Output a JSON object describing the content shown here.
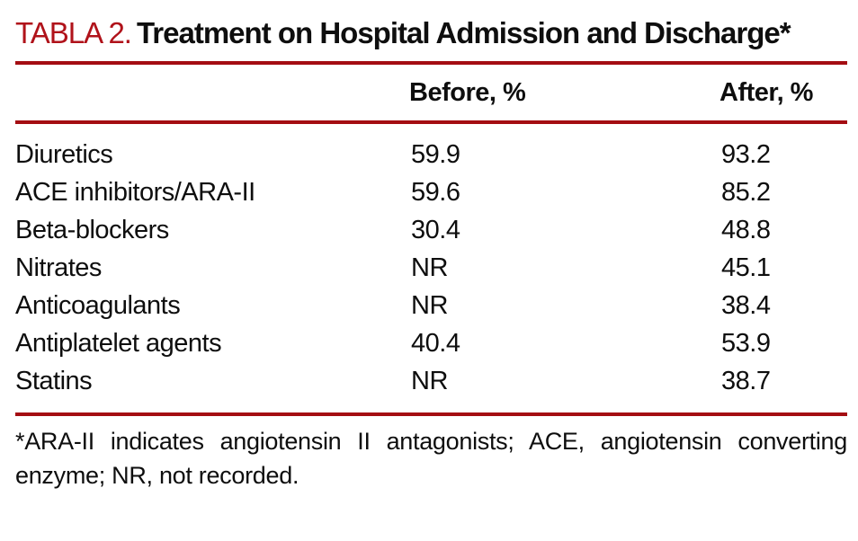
{
  "accent": {
    "title_label_color": "#b0121a",
    "rule_color": "#a40d12",
    "text_color": "#0e0e0e"
  },
  "title": {
    "label": "TABLA 2.",
    "text": "Treatment on Hospital Admission and Discharge*"
  },
  "table": {
    "columns": [
      "",
      "Before, %",
      "After, %"
    ],
    "rows": [
      {
        "treatment": "Diuretics",
        "before": "59.9",
        "after": "93.2"
      },
      {
        "treatment": "ACE inhibitors/ARA-II",
        "before": "59.6",
        "after": "85.2"
      },
      {
        "treatment": "Beta-blockers",
        "before": "30.4",
        "after": "48.8"
      },
      {
        "treatment": "Nitrates",
        "before": "NR",
        "after": "45.1"
      },
      {
        "treatment": "Anticoagulants",
        "before": "NR",
        "after": "38.4"
      },
      {
        "treatment": "Antiplatelet agents",
        "before": "40.4",
        "after": "53.9"
      },
      {
        "treatment": "Statins",
        "before": "NR",
        "after": "38.7"
      }
    ]
  },
  "footnote": {
    "text": "*ARA-II indicates angiotensin II antagonists; ACE, angiotensin converting enzyme; NR, not recorded.",
    "lines": [
      "*ARA-II indicates angiotensin II antagonists; ACE, angiotensin converting",
      "enzyme; NR, not recorded."
    ]
  }
}
